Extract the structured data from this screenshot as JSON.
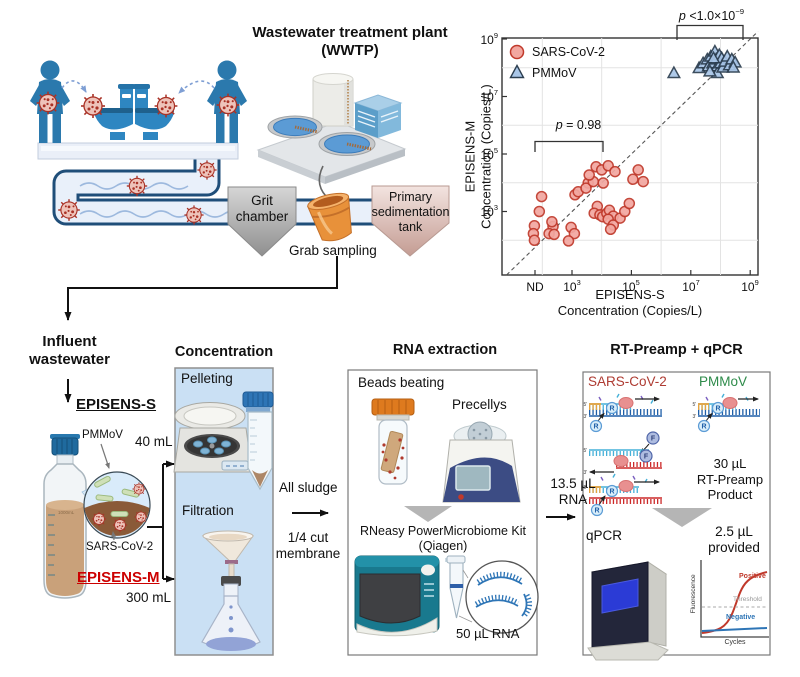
{
  "figure": {
    "wwtp_title_l1": "Wastewater treatment plant",
    "wwtp_title_l2": "(WWTP)",
    "grit_chamber": "Grit chamber",
    "primary_tank": "Primary sedimentation tank",
    "grab_sampling": "Grab sampling",
    "influent_l1": "Influent",
    "influent_l2": "wastewater",
    "episens_s": "EPISENS-S",
    "episens_m": "EPISENS-M",
    "pmmov_label": "PMMoV",
    "sars_label": "SARS-CoV-2",
    "bottle_label": "1000mL",
    "vol_40": "40 mL",
    "vol_300": "300 mL",
    "conc_title": "Concentration",
    "pelleting": "Pelleting",
    "filtration": "Filtration",
    "all_sludge": "All sludge",
    "cut_membrane_l1": "1/4 cut",
    "cut_membrane_l2": "membrane",
    "rna_title": "RNA extraction",
    "beads_beating": "Beads beating",
    "precellys": "Precellys",
    "rneasy_l1": "RNeasy PowerMicrobiome Kit",
    "rneasy_l2": "(Qiagen)",
    "rna_50": "50 µL RNA",
    "rna_135_l1": "13.5 µL",
    "rna_135_l2": "RNA",
    "rt_title": "RT-Preamp + qPCR",
    "rt_sars": "SARS-CoV-2",
    "rt_pmmov": "PMMoV",
    "product_l1": "30 µL",
    "product_l2": "RT-Preamp",
    "product_l3": "Product",
    "qpcr": "qPCR",
    "provided_l1": "2.5 µL",
    "provided_l2": "provided",
    "rt_r": "R",
    "rt_f": "F",
    "five_prime": "5'",
    "three_prime": "3'",
    "qgraph": {
      "fluorescence": "Fluorescence",
      "cycles": "Cycles",
      "positive": "Positive",
      "threshold": "Threshold",
      "negative": "Negative"
    }
  },
  "chart_data": {
    "type": "scatter",
    "x_scale": "log",
    "y_scale": "log",
    "xlim": [
      5,
      2000000000
    ],
    "ylim": [
      6,
      1000000000
    ],
    "grid": true,
    "identity_line": true,
    "legend_position": "top-left",
    "xlabel_l1": "EPISENS-S",
    "xlabel_l2": "Concentration (Copies/L)",
    "ylabel_l1": "EPISENS-M",
    "ylabel_l2": "Concentration (Copies/L)",
    "xticks": [
      {
        "base": "ND",
        "exp": ""
      },
      {
        "base": "10",
        "exp": "3"
      },
      {
        "base": "10",
        "exp": "5"
      },
      {
        "base": "10",
        "exp": "7"
      },
      {
        "base": "10",
        "exp": "9"
      }
    ],
    "yticks": [
      {
        "base": "10",
        "exp": "9"
      },
      {
        "base": "10",
        "exp": "7"
      },
      {
        "base": "10",
        "exp": "5"
      },
      {
        "base": "10",
        "exp": "3"
      }
    ],
    "annotations": {
      "p_sars": {
        "p": "p",
        "rest": " = 0.98"
      },
      "p_pmmov": {
        "p": "p",
        "rest": " <1.0×10",
        "exp": "−9"
      }
    },
    "series": [
      {
        "name": "SARS-CoV-2",
        "marker": "circle",
        "fill": "#F2A7A0",
        "stroke": "#C0392B",
        "points": [
          [
            95,
            3300
          ],
          [
            79,
            1000
          ],
          [
            54,
            320
          ],
          [
            50,
            170
          ],
          [
            54,
            100
          ],
          [
            230,
            300
          ],
          [
            170,
            170
          ],
          [
            250,
            160
          ],
          [
            210,
            440
          ],
          [
            930,
            280
          ],
          [
            1200,
            170
          ],
          [
            760,
            95
          ],
          [
            7100,
            1500
          ],
          [
            5600,
            870
          ],
          [
            8700,
            760
          ],
          [
            10700,
            660
          ],
          [
            14800,
            870
          ],
          [
            18200,
            1100
          ],
          [
            24500,
            690
          ],
          [
            16600,
            540
          ],
          [
            24500,
            340
          ],
          [
            20000,
            240
          ],
          [
            41700,
            590
          ],
          [
            60000,
            1000
          ],
          [
            85000,
            1900
          ],
          [
            1260,
            3800
          ],
          [
            1620,
            4900
          ],
          [
            3500,
            9800
          ],
          [
            2950,
            6500
          ],
          [
            5200,
            11000
          ],
          [
            3800,
            18600
          ],
          [
            6500,
            36000
          ],
          [
            10000,
            28000
          ],
          [
            16600,
            39000
          ],
          [
            28000,
            24500
          ],
          [
            11200,
            9800
          ],
          [
            170000,
            28000
          ],
          [
            250000,
            11000
          ],
          [
            112000,
            13200
          ]
        ]
      },
      {
        "name": "PMMoV",
        "marker": "triangle",
        "fill": "#A9C6E8",
        "stroke": "#2C3E50",
        "points": [
          [
            2700000.0,
            64000000.0
          ],
          [
            19000000.0,
            96000000.0
          ],
          [
            26000000.0,
            140000000.0
          ],
          [
            36000000.0,
            190000000.0
          ],
          [
            39000000.0,
            110000000.0
          ],
          [
            47000000.0,
            240000000.0
          ],
          [
            55000000.0,
            140000000.0
          ],
          [
            65000000.0,
            360000000.0
          ],
          [
            71000000.0,
            190000000.0
          ],
          [
            78000000.0,
            110000000.0
          ],
          [
            78000000.0,
            64000000.0
          ],
          [
            91000000.0,
            270000000.0
          ],
          [
            100000000.0,
            140000000.0
          ],
          [
            110000000.0,
            210000000.0
          ],
          [
            120000000.0,
            100000000.0
          ],
          [
            140000000.0,
            160000000.0
          ],
          [
            170000000.0,
            240000000.0
          ],
          [
            200000000.0,
            120000000.0
          ],
          [
            240000000.0,
            190000000.0
          ],
          [
            310000000.0,
            150000000.0
          ],
          [
            270000000.0,
            100000000.0
          ],
          [
            44000000.0,
            73000000.0
          ],
          [
            58000000.0,
            210000000.0
          ]
        ]
      }
    ]
  }
}
